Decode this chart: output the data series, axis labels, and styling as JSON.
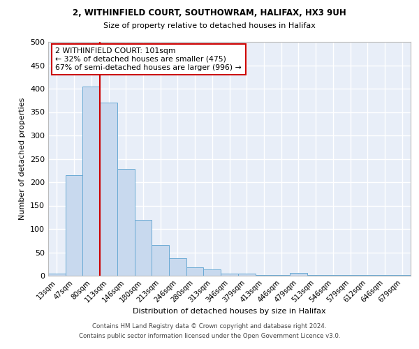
{
  "title1": "2, WITHINFIELD COURT, SOUTHOWRAM, HALIFAX, HX3 9UH",
  "title2": "Size of property relative to detached houses in Halifax",
  "xlabel": "Distribution of detached houses by size in Halifax",
  "ylabel": "Number of detached properties",
  "bar_labels": [
    "13sqm",
    "47sqm",
    "80sqm",
    "113sqm",
    "146sqm",
    "180sqm",
    "213sqm",
    "246sqm",
    "280sqm",
    "313sqm",
    "346sqm",
    "379sqm",
    "413sqm",
    "446sqm",
    "479sqm",
    "513sqm",
    "546sqm",
    "579sqm",
    "612sqm",
    "646sqm",
    "679sqm"
  ],
  "bar_values": [
    5,
    215,
    405,
    370,
    228,
    119,
    65,
    38,
    18,
    14,
    5,
    5,
    1,
    1,
    6,
    1,
    1,
    1,
    1,
    1,
    1
  ],
  "bar_color": "#c8d9ee",
  "bar_edge_color": "#6aaad4",
  "bg_color": "#e8eef8",
  "grid_color": "#d0d8e8",
  "vline_color": "#cc0000",
  "annotation_text": "2 WITHINFIELD COURT: 101sqm\n← 32% of detached houses are smaller (475)\n67% of semi-detached houses are larger (996) →",
  "annotation_box_color": "#ffffff",
  "annotation_box_edge": "#cc0000",
  "ylim": [
    0,
    500
  ],
  "yticks": [
    0,
    50,
    100,
    150,
    200,
    250,
    300,
    350,
    400,
    450,
    500
  ],
  "footer1": "Contains HM Land Registry data © Crown copyright and database right 2024.",
  "footer2": "Contains public sector information licensed under the Open Government Licence v3.0."
}
